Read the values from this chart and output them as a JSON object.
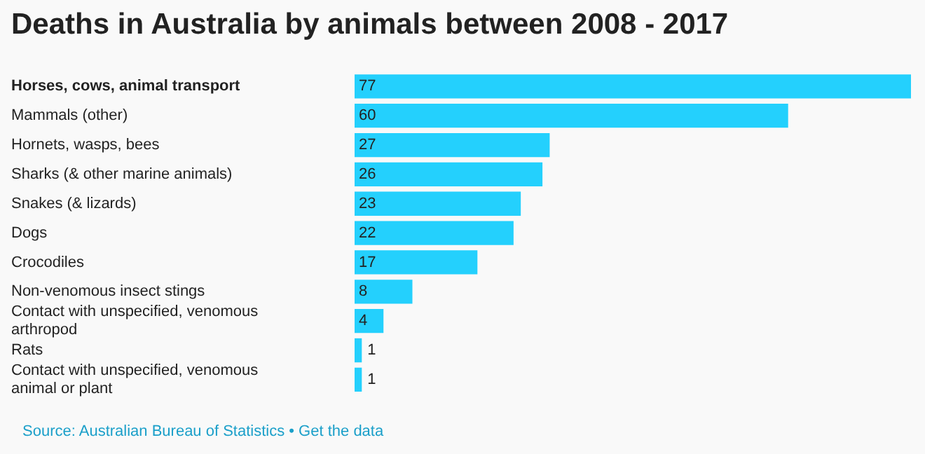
{
  "chart_data": {
    "type": "bar",
    "orientation": "horizontal",
    "title": "Deaths in Australia by animals between 2008 - 2017",
    "categories": [
      "Horses, cows, animal transport",
      "Mammals (other)",
      "Hornets, wasps, bees",
      "Sharks (& other marine animals)",
      "Snakes (& lizards)",
      "Dogs",
      "Crocodiles",
      "Non-venomous insect stings",
      "Contact with unspecified, venomous arthropod",
      "Rats",
      "Contact with unspecified, venomous animal or plant"
    ],
    "values": [
      77,
      60,
      27,
      26,
      23,
      22,
      17,
      8,
      4,
      1,
      1
    ],
    "color": "#24d0fd",
    "data_labels": true,
    "legend": false,
    "tick_labels": "y",
    "annotations": [
      "Source: Australian Bureau of Statistics • Get the data"
    ]
  }
}
